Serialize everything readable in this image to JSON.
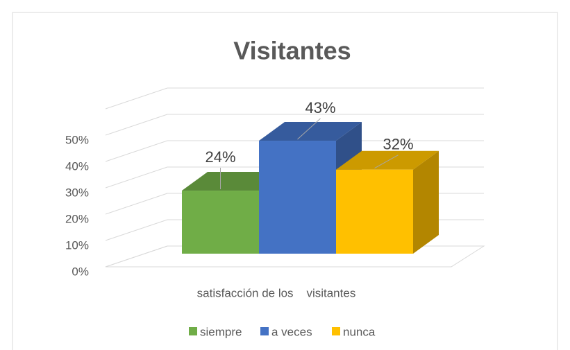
{
  "chart_data": {
    "type": "bar3d",
    "title": "Visitantes",
    "categories": [
      "satisfacción de los    visitantes"
    ],
    "series": [
      {
        "name": "siempre",
        "color": "#70ad47",
        "values": [
          24
        ],
        "value_labels": [
          "24%"
        ]
      },
      {
        "name": "a veces",
        "color": "#4472c4",
        "values": [
          43
        ],
        "value_labels": [
          "43%"
        ]
      },
      {
        "name": "nunca",
        "color": "#ffc000",
        "values": [
          32
        ],
        "value_labels": [
          "32%"
        ]
      }
    ],
    "ylim": [
      0,
      60
    ],
    "yticks": [
      {
        "value": 0,
        "label": "0%"
      },
      {
        "value": 10,
        "label": "10%"
      },
      {
        "value": 20,
        "label": "20%"
      },
      {
        "value": 30,
        "label": "30%"
      },
      {
        "value": 40,
        "label": "40%"
      },
      {
        "value": 50,
        "label": "50%"
      }
    ],
    "grid": true,
    "legend": "bottom"
  }
}
